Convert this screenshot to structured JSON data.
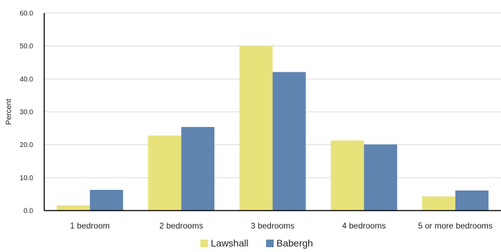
{
  "chart_data": {
    "type": "bar",
    "title": "",
    "xlabel": "",
    "ylabel": "Percent",
    "ylim": [
      0,
      60
    ],
    "yticks": [
      "0.0",
      "10.0",
      "20.0",
      "30.0",
      "40.0",
      "50.0",
      "60.0"
    ],
    "categories": [
      "1 bedroom",
      "2 bedrooms",
      "3 bedrooms",
      "4 bedrooms",
      "5 or more bedrooms"
    ],
    "series": [
      {
        "name": "Lawshall",
        "color": "#E8E27A",
        "values": [
          1.6,
          22.8,
          50.0,
          21.3,
          4.3
        ]
      },
      {
        "name": "Babergh",
        "color": "#5F84B0",
        "values": [
          6.3,
          25.4,
          42.1,
          20.1,
          6.1
        ]
      }
    ],
    "grid": true,
    "legend_position": "bottom-center"
  }
}
